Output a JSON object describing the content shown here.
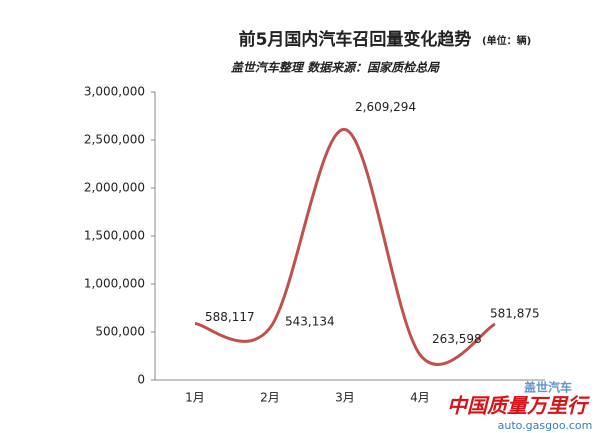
{
  "chart_data": {
    "type": "line",
    "title": "前5月国内汽车召回量变化趋势",
    "unit": "(单位：辆)",
    "subtitle": "盖世汽车整理  数据来源：国家质检总局",
    "watermarks": [
      "盖世汽车",
      "中国质量万里行",
      "auto.gasgoo.com"
    ],
    "categories": [
      "1月",
      "2月",
      "3月",
      "4月",
      null
    ],
    "series": [
      {
        "name": "召回量",
        "color": "#c0504d",
        "values": [
          588117,
          543134,
          2609294,
          263598,
          581875
        ],
        "value_labels": [
          "588,117",
          "543,134",
          "2,609,294",
          "263,598",
          "581,875"
        ]
      }
    ],
    "ylim": [
      0,
      3000000
    ],
    "yticks": [
      0,
      {
        "value": 500000,
        "label": "500,000"
      },
      {
        "value": 1000000,
        "label": "1,000,000"
      },
      {
        "value": 1500000,
        "label": "1,500,000"
      },
      {
        "value": 2000000,
        "label": "2,000,000"
      },
      {
        "value": 2500000,
        "label": "2,500,000"
      },
      {
        "value": 3000000,
        "label": "3,000,000"
      }
    ]
  }
}
